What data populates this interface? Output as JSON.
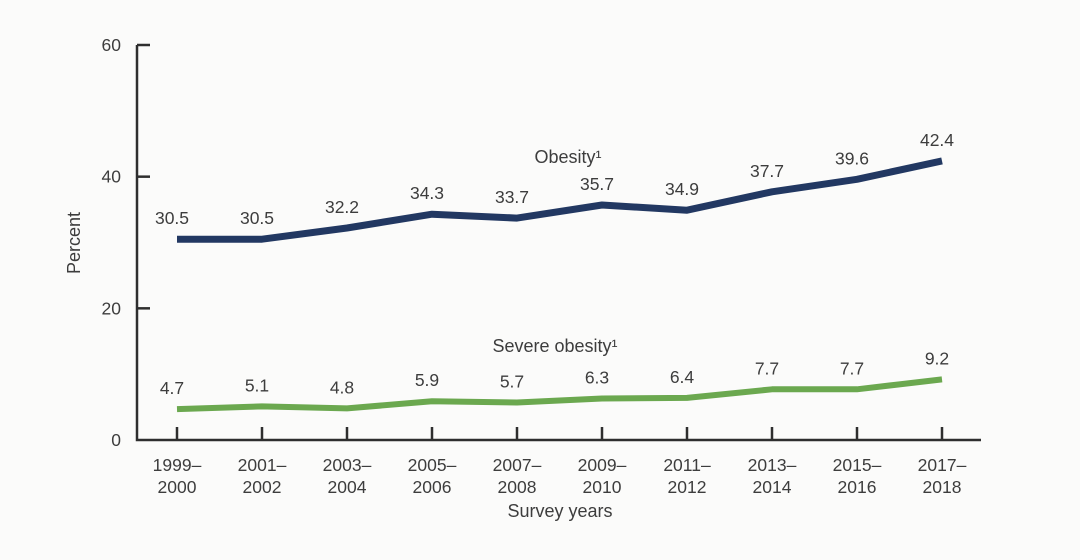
{
  "chart_data": {
    "type": "line",
    "title": "",
    "xlabel": "Survey years",
    "ylabel": "Percent",
    "categories": [
      [
        "1999–",
        "2000"
      ],
      [
        "2001–",
        "2002"
      ],
      [
        "2003–",
        "2004"
      ],
      [
        "2005–",
        "2006"
      ],
      [
        "2007–",
        "2008"
      ],
      [
        "2009–",
        "2010"
      ],
      [
        "2011–",
        "2012"
      ],
      [
        "2013–",
        "2014"
      ],
      [
        "2015–",
        "2016"
      ],
      [
        "2017–",
        "2018"
      ]
    ],
    "y_ticks": [
      0,
      20,
      40,
      60
    ],
    "ylim": [
      0,
      60
    ],
    "grid": false,
    "legend_position": "inline-labels",
    "series": [
      {
        "name": "Obesity¹",
        "color": "#223862",
        "values": [
          30.5,
          30.5,
          32.2,
          34.3,
          33.7,
          35.7,
          34.9,
          37.7,
          39.6,
          42.4
        ]
      },
      {
        "name": "Severe obesity¹",
        "color": "#6ba84f",
        "values": [
          4.7,
          5.1,
          4.8,
          5.9,
          5.7,
          6.3,
          6.4,
          7.7,
          7.7,
          9.2
        ]
      }
    ]
  },
  "colors": {
    "background": "#fbfbfa",
    "axis": "#2e2e2e",
    "text": "#3d3d3d",
    "obesity_line": "#223862",
    "severe_obesity_line": "#6ba84f"
  }
}
